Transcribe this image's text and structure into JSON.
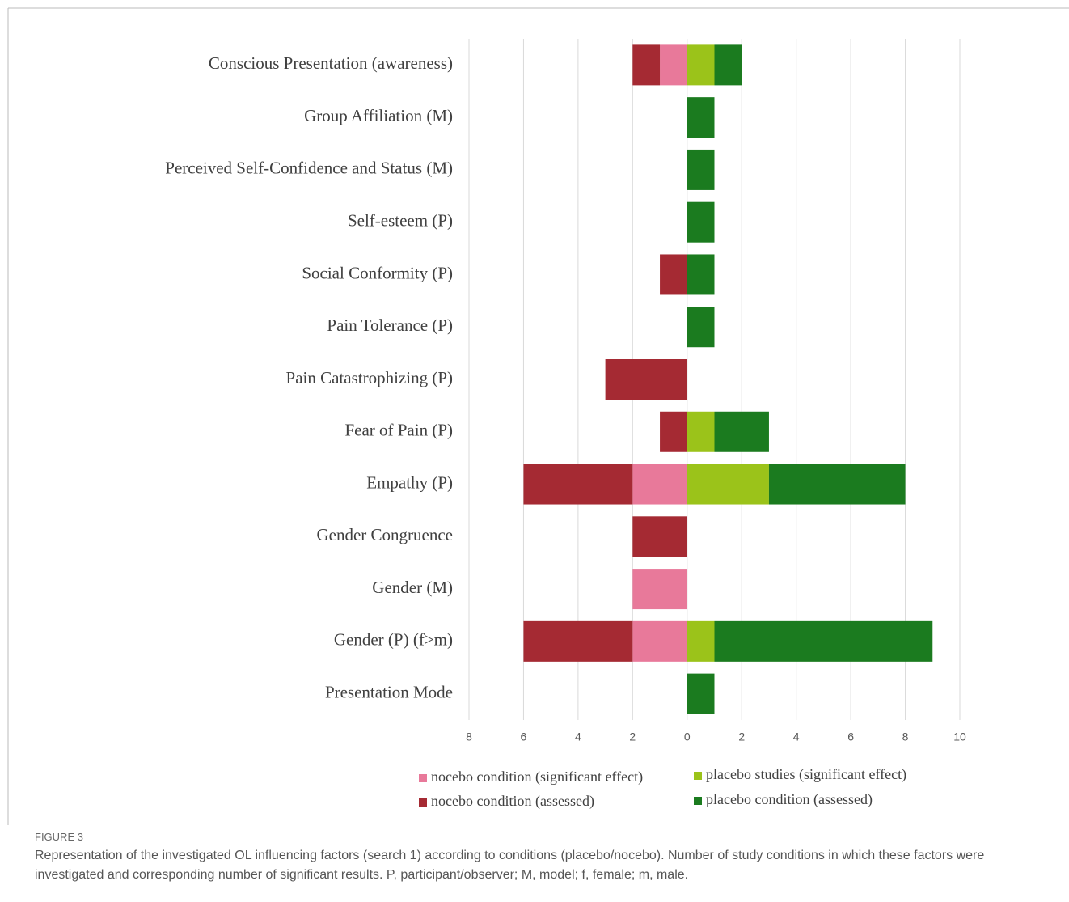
{
  "chart_data": {
    "type": "diverging-bar",
    "categories": [
      "Conscious Presentation (awareness)",
      "Group Affiliation (M)",
      "Perceived Self-Confidence and Status (M)",
      "Self-esteem (P)",
      "Social Conformity (P)",
      "Pain Tolerance (P)",
      "Pain Catastrophizing (P)",
      "Fear of Pain (P)",
      "Empathy (P)",
      "Gender Congruence",
      "Gender (M)",
      "Gender (P) (f>m)",
      "Presentation Mode"
    ],
    "series": [
      {
        "name": "nocebo condition (significant effect)",
        "color": "#e8799a",
        "values": [
          -1,
          0,
          0,
          0,
          0,
          0,
          0,
          0,
          -2,
          0,
          -2,
          -2,
          0
        ]
      },
      {
        "name": "nocebo condition (assessed)",
        "color": "#a52a33",
        "values": [
          -1,
          0,
          0,
          0,
          -1,
          0,
          -3,
          -1,
          -4,
          -2,
          0,
          -4,
          0
        ]
      },
      {
        "name": "placebo studies (significant effect)",
        "color": "#9bc31a",
        "values": [
          1,
          0,
          0,
          0,
          0,
          0,
          0,
          1,
          3,
          0,
          0,
          1,
          0
        ]
      },
      {
        "name": "placebo condition (assessed)",
        "color": "#1b7b1f",
        "values": [
          1,
          1,
          1,
          1,
          1,
          1,
          0,
          2,
          5,
          0,
          0,
          8,
          1
        ]
      }
    ],
    "xlim": [
      -8,
      10
    ],
    "xticks": [
      {
        "value": -8,
        "label": "8"
      },
      {
        "value": -6,
        "label": "6"
      },
      {
        "value": -4,
        "label": "4"
      },
      {
        "value": -2,
        "label": "2"
      },
      0,
      2,
      4,
      6,
      8,
      10
    ],
    "grid": true
  },
  "figure_label": "FIGURE 3",
  "caption": "Representation of the investigated OL influencing factors (search 1) according to conditions (placebo/nocebo). Number of study conditions in which these factors were investigated and corresponding number of significant results. P, participant/observer; M, model; f, female; m, male."
}
